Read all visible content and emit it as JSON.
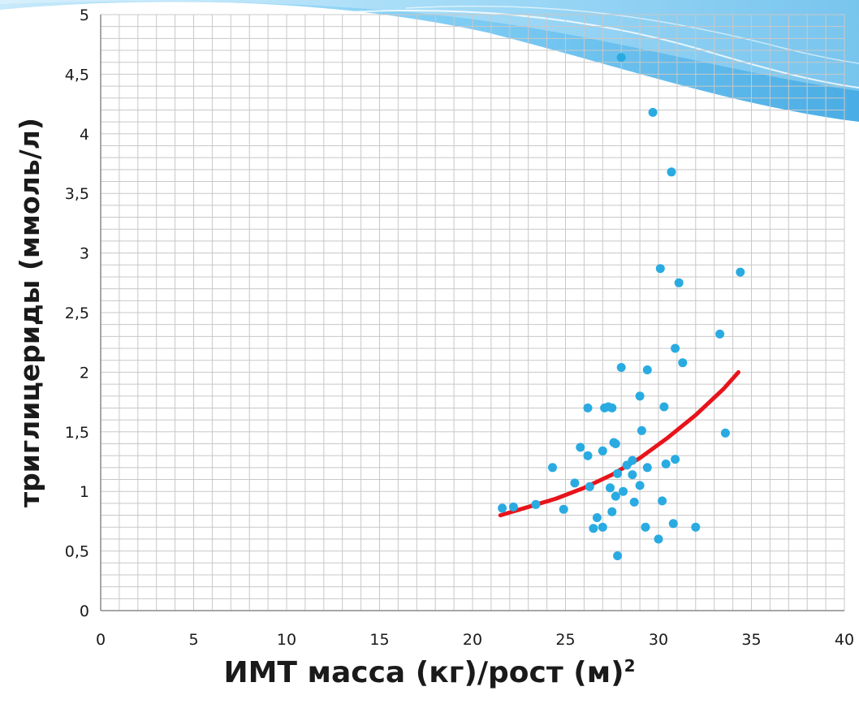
{
  "chart_data": {
    "type": "scatter",
    "xlabel": "ИМТ масса (кг)/рост (м)",
    "xlabel_superscript": "2",
    "ylabel": "триглицериды (ммоль/л)",
    "xlim": [
      0,
      40
    ],
    "ylim": [
      0,
      5
    ],
    "x_ticks": [
      "0",
      "5",
      "10",
      "15",
      "20",
      "25",
      "30",
      "35",
      "40"
    ],
    "y_ticks": [
      "0",
      "0,5",
      "1",
      "1,5",
      "2",
      "2,5",
      "3",
      "3,5",
      "4",
      "4,5",
      "5"
    ],
    "grid": true,
    "points_color": "#29abe2",
    "trend_color": "#e8141b",
    "points": [
      [
        21.6,
        0.86
      ],
      [
        22.2,
        0.87
      ],
      [
        23.4,
        0.89
      ],
      [
        24.3,
        1.2
      ],
      [
        24.9,
        0.85
      ],
      [
        25.5,
        1.07
      ],
      [
        25.8,
        1.37
      ],
      [
        26.2,
        1.3
      ],
      [
        26.2,
        1.7
      ],
      [
        26.3,
        1.04
      ],
      [
        26.5,
        0.69
      ],
      [
        26.7,
        0.78
      ],
      [
        27.0,
        0.7
      ],
      [
        27.0,
        1.34
      ],
      [
        27.1,
        1.7
      ],
      [
        27.3,
        1.71
      ],
      [
        27.4,
        1.03
      ],
      [
        27.5,
        0.83
      ],
      [
        27.5,
        1.7
      ],
      [
        27.6,
        1.41
      ],
      [
        27.7,
        0.96
      ],
      [
        27.7,
        1.4
      ],
      [
        27.8,
        1.15
      ],
      [
        27.8,
        0.46
      ],
      [
        28.0,
        4.64
      ],
      [
        28.0,
        2.04
      ],
      [
        28.1,
        1.0
      ],
      [
        28.3,
        1.22
      ],
      [
        28.6,
        1.26
      ],
      [
        28.6,
        1.14
      ],
      [
        28.7,
        0.91
      ],
      [
        29.0,
        1.05
      ],
      [
        29.0,
        1.8
      ],
      [
        29.1,
        1.51
      ],
      [
        29.3,
        0.7
      ],
      [
        29.4,
        2.02
      ],
      [
        29.4,
        1.2
      ],
      [
        29.7,
        4.18
      ],
      [
        30.0,
        0.6
      ],
      [
        30.1,
        2.87
      ],
      [
        30.2,
        0.92
      ],
      [
        30.3,
        1.71
      ],
      [
        30.4,
        1.23
      ],
      [
        30.7,
        3.68
      ],
      [
        30.8,
        0.73
      ],
      [
        30.9,
        2.2
      ],
      [
        30.9,
        1.27
      ],
      [
        31.1,
        2.75
      ],
      [
        31.3,
        2.08
      ],
      [
        32.0,
        0.7
      ],
      [
        33.3,
        2.32
      ],
      [
        33.6,
        1.49
      ],
      [
        34.4,
        2.84
      ]
    ],
    "trend_line": [
      [
        21.5,
        0.8
      ],
      [
        23.0,
        0.87
      ],
      [
        24.5,
        0.94
      ],
      [
        26.0,
        1.03
      ],
      [
        27.5,
        1.14
      ],
      [
        29.0,
        1.28
      ],
      [
        30.5,
        1.45
      ],
      [
        32.0,
        1.64
      ],
      [
        33.5,
        1.86
      ],
      [
        34.3,
        2.0
      ]
    ]
  }
}
